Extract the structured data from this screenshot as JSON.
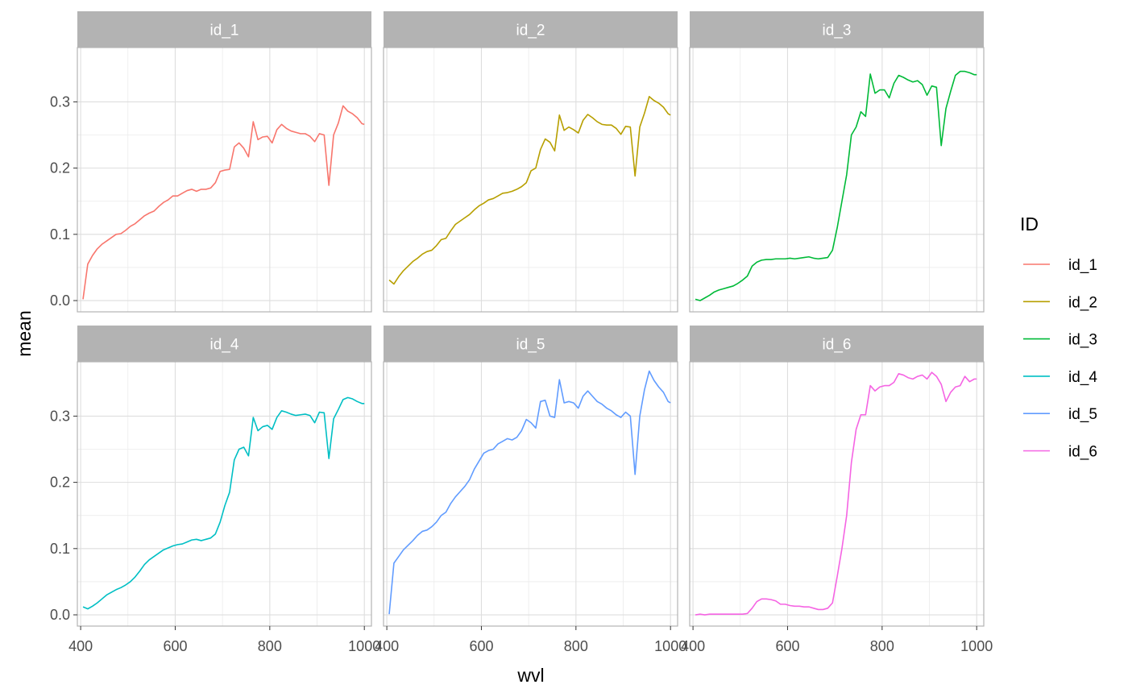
{
  "chart_data": {
    "type": "line",
    "xlabel": "wvl",
    "ylabel": "mean",
    "xlim": [
      393,
      1015
    ],
    "ylim": [
      -0.017,
      0.382
    ],
    "x_ticks": [
      400,
      600,
      800,
      1000
    ],
    "x_tick_labels": [
      "400",
      "600",
      "800",
      "1000"
    ],
    "y_ticks": [
      0.0,
      0.1,
      0.2,
      0.3
    ],
    "y_tick_labels": [
      "0.0",
      "0.1",
      "0.2",
      "0.3"
    ],
    "grid": true,
    "facet_layout": [
      2,
      3
    ],
    "legend": {
      "title": "ID",
      "position": "right"
    },
    "panels": [
      {
        "strip": "id_1",
        "series": "id_1",
        "color": "#F8766D"
      },
      {
        "strip": "id_2",
        "series": "id_2",
        "color": "#B79F00"
      },
      {
        "strip": "id_3",
        "series": "id_3",
        "color": "#00BA38"
      },
      {
        "strip": "id_4",
        "series": "id_4",
        "color": "#00BFC4"
      },
      {
        "strip": "id_5",
        "series": "id_5",
        "color": "#619CFF"
      },
      {
        "strip": "id_6",
        "series": "id_6",
        "color": "#F564E3"
      }
    ],
    "series": [
      {
        "name": "id_1",
        "color": "#F8766D",
        "x": [
          405,
          415,
          425,
          435,
          445,
          455,
          465,
          475,
          485,
          495,
          505,
          515,
          525,
          535,
          545,
          555,
          565,
          575,
          585,
          595,
          605,
          615,
          625,
          635,
          645,
          655,
          665,
          675,
          685,
          695,
          705,
          715,
          725,
          735,
          745,
          755,
          765,
          775,
          785,
          795,
          805,
          815,
          825,
          835,
          845,
          855,
          865,
          875,
          885,
          895,
          905,
          915,
          925,
          935,
          945,
          955,
          965,
          975,
          985,
          995,
          1000
        ],
        "y": [
          0.002,
          0.055,
          0.068,
          0.078,
          0.085,
          0.09,
          0.095,
          0.1,
          0.101,
          0.106,
          0.112,
          0.116,
          0.122,
          0.128,
          0.132,
          0.135,
          0.142,
          0.148,
          0.152,
          0.158,
          0.158,
          0.162,
          0.166,
          0.168,
          0.165,
          0.168,
          0.168,
          0.17,
          0.178,
          0.195,
          0.197,
          0.198,
          0.232,
          0.238,
          0.23,
          0.217,
          0.27,
          0.243,
          0.247,
          0.248,
          0.238,
          0.258,
          0.266,
          0.26,
          0.256,
          0.254,
          0.252,
          0.252,
          0.248,
          0.24,
          0.252,
          0.25,
          0.174,
          0.25,
          0.268,
          0.294,
          0.286,
          0.282,
          0.276,
          0.267,
          0.266
        ]
      },
      {
        "name": "id_2",
        "color": "#B79F00",
        "x": [
          405,
          415,
          425,
          435,
          445,
          455,
          465,
          475,
          485,
          495,
          505,
          515,
          525,
          535,
          545,
          555,
          565,
          575,
          585,
          595,
          605,
          615,
          625,
          635,
          645,
          655,
          665,
          675,
          685,
          695,
          705,
          715,
          725,
          735,
          745,
          755,
          765,
          775,
          785,
          795,
          805,
          815,
          825,
          835,
          845,
          855,
          865,
          875,
          885,
          895,
          905,
          915,
          925,
          935,
          945,
          955,
          965,
          975,
          985,
          995,
          1000
        ],
        "y": [
          0.031,
          0.025,
          0.036,
          0.045,
          0.052,
          0.059,
          0.064,
          0.07,
          0.074,
          0.076,
          0.083,
          0.092,
          0.094,
          0.105,
          0.115,
          0.12,
          0.125,
          0.13,
          0.137,
          0.143,
          0.147,
          0.152,
          0.154,
          0.158,
          0.162,
          0.163,
          0.165,
          0.168,
          0.172,
          0.178,
          0.196,
          0.2,
          0.228,
          0.244,
          0.239,
          0.226,
          0.28,
          0.257,
          0.262,
          0.258,
          0.253,
          0.272,
          0.281,
          0.276,
          0.27,
          0.266,
          0.265,
          0.265,
          0.26,
          0.251,
          0.263,
          0.262,
          0.188,
          0.262,
          0.283,
          0.308,
          0.302,
          0.298,
          0.292,
          0.282,
          0.28
        ]
      },
      {
        "name": "id_3",
        "color": "#00BA38",
        "x": [
          405,
          415,
          425,
          435,
          445,
          455,
          465,
          475,
          485,
          495,
          505,
          515,
          525,
          535,
          545,
          555,
          565,
          575,
          585,
          595,
          605,
          615,
          625,
          635,
          645,
          655,
          665,
          675,
          685,
          695,
          705,
          715,
          725,
          735,
          745,
          755,
          765,
          775,
          785,
          795,
          805,
          815,
          825,
          835,
          845,
          855,
          865,
          875,
          885,
          895,
          905,
          915,
          925,
          935,
          945,
          955,
          965,
          975,
          985,
          995,
          1000
        ],
        "y": [
          0.002,
          0.0,
          0.004,
          0.008,
          0.013,
          0.016,
          0.018,
          0.02,
          0.022,
          0.026,
          0.031,
          0.037,
          0.052,
          0.058,
          0.061,
          0.062,
          0.062,
          0.063,
          0.063,
          0.063,
          0.064,
          0.063,
          0.064,
          0.065,
          0.066,
          0.064,
          0.063,
          0.064,
          0.065,
          0.076,
          0.11,
          0.15,
          0.19,
          0.25,
          0.262,
          0.285,
          0.278,
          0.342,
          0.313,
          0.318,
          0.318,
          0.306,
          0.328,
          0.34,
          0.337,
          0.333,
          0.33,
          0.332,
          0.326,
          0.31,
          0.324,
          0.322,
          0.234,
          0.29,
          0.316,
          0.34,
          0.346,
          0.346,
          0.344,
          0.341,
          0.341
        ]
      },
      {
        "name": "id_4",
        "color": "#00BFC4",
        "x": [
          405,
          415,
          425,
          435,
          445,
          455,
          465,
          475,
          485,
          495,
          505,
          515,
          525,
          535,
          545,
          555,
          565,
          575,
          585,
          595,
          605,
          615,
          625,
          635,
          645,
          655,
          665,
          675,
          685,
          695,
          705,
          715,
          725,
          735,
          745,
          755,
          765,
          775,
          785,
          795,
          805,
          815,
          825,
          835,
          845,
          855,
          865,
          875,
          885,
          895,
          905,
          915,
          925,
          935,
          945,
          955,
          965,
          975,
          985,
          995,
          1000
        ],
        "y": [
          0.012,
          0.009,
          0.013,
          0.018,
          0.024,
          0.03,
          0.034,
          0.038,
          0.041,
          0.045,
          0.05,
          0.057,
          0.066,
          0.076,
          0.083,
          0.088,
          0.093,
          0.098,
          0.101,
          0.104,
          0.106,
          0.107,
          0.11,
          0.113,
          0.114,
          0.112,
          0.114,
          0.116,
          0.122,
          0.14,
          0.165,
          0.185,
          0.234,
          0.25,
          0.253,
          0.24,
          0.298,
          0.278,
          0.284,
          0.286,
          0.28,
          0.298,
          0.308,
          0.306,
          0.303,
          0.301,
          0.302,
          0.303,
          0.301,
          0.29,
          0.306,
          0.305,
          0.236,
          0.296,
          0.31,
          0.325,
          0.328,
          0.326,
          0.322,
          0.319,
          0.319
        ]
      },
      {
        "name": "id_5",
        "color": "#619CFF",
        "x": [
          405,
          415,
          425,
          435,
          445,
          455,
          465,
          475,
          485,
          495,
          505,
          515,
          525,
          535,
          545,
          555,
          565,
          575,
          585,
          595,
          605,
          615,
          625,
          635,
          645,
          655,
          665,
          675,
          685,
          695,
          705,
          715,
          725,
          735,
          745,
          755,
          765,
          775,
          785,
          795,
          805,
          815,
          825,
          835,
          845,
          855,
          865,
          875,
          885,
          895,
          905,
          915,
          925,
          935,
          945,
          955,
          965,
          975,
          985,
          995,
          1000
        ],
        "y": [
          0.001,
          0.078,
          0.088,
          0.098,
          0.105,
          0.112,
          0.12,
          0.126,
          0.128,
          0.133,
          0.14,
          0.15,
          0.155,
          0.168,
          0.178,
          0.186,
          0.194,
          0.204,
          0.22,
          0.232,
          0.244,
          0.248,
          0.25,
          0.258,
          0.262,
          0.266,
          0.264,
          0.268,
          0.278,
          0.295,
          0.29,
          0.282,
          0.322,
          0.324,
          0.3,
          0.298,
          0.355,
          0.32,
          0.322,
          0.32,
          0.312,
          0.33,
          0.338,
          0.33,
          0.322,
          0.318,
          0.312,
          0.308,
          0.302,
          0.298,
          0.306,
          0.3,
          0.212,
          0.3,
          0.34,
          0.368,
          0.354,
          0.344,
          0.336,
          0.322,
          0.32
        ]
      },
      {
        "name": "id_6",
        "color": "#F564E3",
        "x": [
          405,
          415,
          425,
          435,
          445,
          455,
          465,
          475,
          485,
          495,
          505,
          515,
          525,
          535,
          545,
          555,
          565,
          575,
          585,
          595,
          605,
          615,
          625,
          635,
          645,
          655,
          665,
          675,
          685,
          695,
          705,
          715,
          725,
          735,
          745,
          755,
          765,
          775,
          785,
          795,
          805,
          815,
          825,
          835,
          845,
          855,
          865,
          875,
          885,
          895,
          905,
          915,
          925,
          935,
          945,
          955,
          965,
          975,
          985,
          995,
          1000
        ],
        "y": [
          0.0,
          0.001,
          0.0,
          0.001,
          0.001,
          0.001,
          0.001,
          0.001,
          0.001,
          0.001,
          0.001,
          0.002,
          0.01,
          0.02,
          0.024,
          0.024,
          0.023,
          0.021,
          0.016,
          0.016,
          0.014,
          0.013,
          0.013,
          0.012,
          0.012,
          0.01,
          0.008,
          0.008,
          0.01,
          0.018,
          0.058,
          0.1,
          0.15,
          0.23,
          0.28,
          0.302,
          0.302,
          0.346,
          0.338,
          0.344,
          0.346,
          0.346,
          0.351,
          0.364,
          0.362,
          0.358,
          0.356,
          0.36,
          0.362,
          0.356,
          0.366,
          0.36,
          0.348,
          0.322,
          0.336,
          0.344,
          0.346,
          0.36,
          0.352,
          0.356,
          0.356
        ]
      }
    ]
  }
}
